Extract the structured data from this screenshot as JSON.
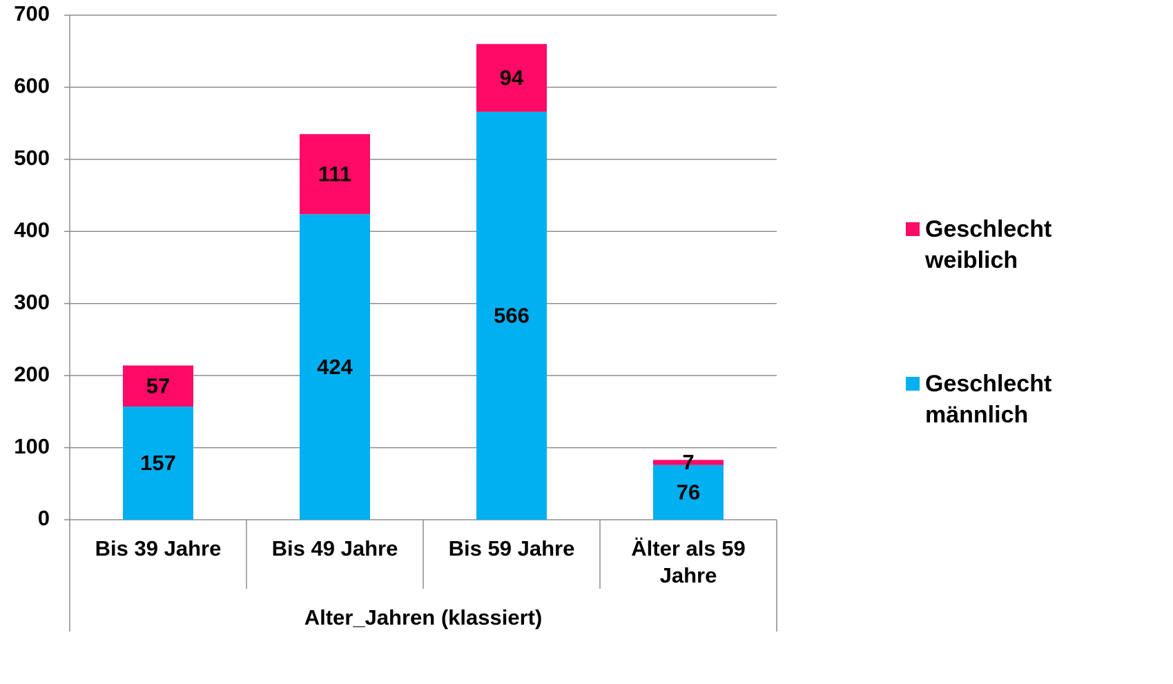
{
  "chart_data": {
    "type": "stacked_bar",
    "categories": [
      "Bis 39 Jahre",
      "Bis 49 Jahre",
      "Bis 59 Jahre",
      "Älter als 59 Jahre"
    ],
    "series": [
      {
        "name": "Geschlecht männlich",
        "color": "#00b0f0",
        "values": [
          157,
          424,
          566,
          76
        ]
      },
      {
        "name": "Geschlecht weiblich",
        "color": "#ff0a66",
        "values": [
          57,
          111,
          94,
          7
        ]
      }
    ],
    "xlabel": "Alter_Jahren (klassiert)",
    "ylim": [
      0,
      700
    ],
    "yticks": [
      0,
      100,
      200,
      300,
      400,
      500,
      600,
      700
    ],
    "grid": true,
    "legend": "right"
  }
}
